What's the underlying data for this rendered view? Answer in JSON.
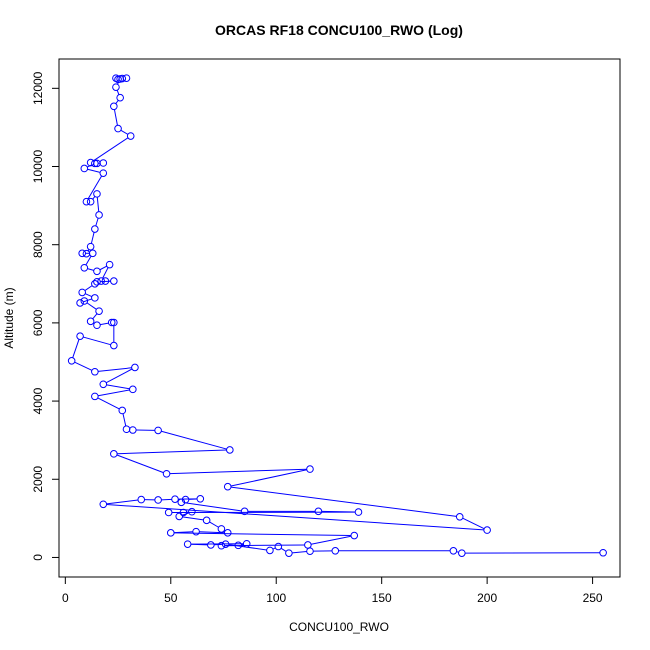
{
  "chart_data": {
    "type": "line",
    "title": "ORCAS RF18 CONCU100_RWO (Log)",
    "xlabel": "CONCU100_RWO",
    "ylabel": "Altitude (m)",
    "xlim": [
      -3,
      263
    ],
    "ylim": [
      -500,
      12750
    ],
    "x_ticks": [
      0,
      50,
      100,
      150,
      200,
      250
    ],
    "y_ticks": [
      0,
      2000,
      4000,
      6000,
      8000,
      10000,
      12000
    ],
    "grid": false,
    "marker": "open-circle",
    "colors": {
      "series": "#0000ff",
      "axis": "#000000"
    },
    "series": [
      {
        "points": [
          [
            24,
            12260
          ],
          [
            25,
            12230
          ],
          [
            27,
            12250
          ],
          [
            29,
            12260
          ],
          [
            26,
            12240
          ],
          [
            24,
            12030
          ],
          [
            26,
            11760
          ],
          [
            23,
            11540
          ],
          [
            25,
            10970
          ],
          [
            31,
            10780
          ],
          [
            12,
            10100
          ],
          [
            15,
            10080
          ],
          [
            18,
            10090
          ],
          [
            14,
            10080
          ],
          [
            9,
            9950
          ],
          [
            18,
            9830
          ],
          [
            10,
            9100
          ],
          [
            12,
            9100
          ],
          [
            15,
            9300
          ],
          [
            16,
            8760
          ],
          [
            14,
            8400
          ],
          [
            12,
            7950
          ],
          [
            10,
            7770
          ],
          [
            8,
            7780
          ],
          [
            13,
            7780
          ],
          [
            9,
            7410
          ],
          [
            15,
            7320
          ],
          [
            21,
            7490
          ],
          [
            17,
            7070
          ],
          [
            19,
            7070
          ],
          [
            23,
            7070
          ],
          [
            15,
            7050
          ],
          [
            14,
            7000
          ],
          [
            8,
            6780
          ],
          [
            14,
            6640
          ],
          [
            7,
            6510
          ],
          [
            9,
            6560
          ],
          [
            16,
            6300
          ],
          [
            12,
            6040
          ],
          [
            15,
            5940
          ],
          [
            22,
            6010
          ],
          [
            23,
            6010
          ],
          [
            23,
            5420
          ],
          [
            7,
            5660
          ],
          [
            3,
            5030
          ],
          [
            14,
            4750
          ],
          [
            33,
            4860
          ],
          [
            18,
            4430
          ],
          [
            32,
            4300
          ],
          [
            14,
            4120
          ],
          [
            27,
            3760
          ],
          [
            29,
            3280
          ],
          [
            32,
            3260
          ],
          [
            44,
            3250
          ],
          [
            78,
            2750
          ],
          [
            23,
            2650
          ],
          [
            48,
            2140
          ],
          [
            116,
            2260
          ],
          [
            77,
            1810
          ],
          [
            187,
            1040
          ],
          [
            200,
            700
          ],
          [
            18,
            1360
          ],
          [
            36,
            1480
          ],
          [
            44,
            1470
          ],
          [
            52,
            1490
          ],
          [
            64,
            1500
          ],
          [
            57,
            1480
          ],
          [
            55,
            1410
          ],
          [
            85,
            1180
          ],
          [
            120,
            1180
          ],
          [
            139,
            1160
          ],
          [
            49,
            1150
          ],
          [
            56,
            1150
          ],
          [
            60,
            1170
          ],
          [
            54,
            1050
          ],
          [
            67,
            950
          ],
          [
            74,
            730
          ],
          [
            77,
            630
          ],
          [
            62,
            660
          ],
          [
            50,
            630
          ],
          [
            137,
            560
          ],
          [
            115,
            320
          ],
          [
            74,
            300
          ],
          [
            82,
            310
          ],
          [
            86,
            350
          ],
          [
            58,
            340
          ],
          [
            69,
            320
          ],
          [
            76,
            340
          ],
          [
            97,
            180
          ],
          [
            101,
            280
          ],
          [
            106,
            110
          ],
          [
            116,
            160
          ],
          [
            128,
            170
          ],
          [
            184,
            170
          ],
          [
            188,
            110
          ],
          [
            255,
            120
          ]
        ]
      }
    ]
  }
}
